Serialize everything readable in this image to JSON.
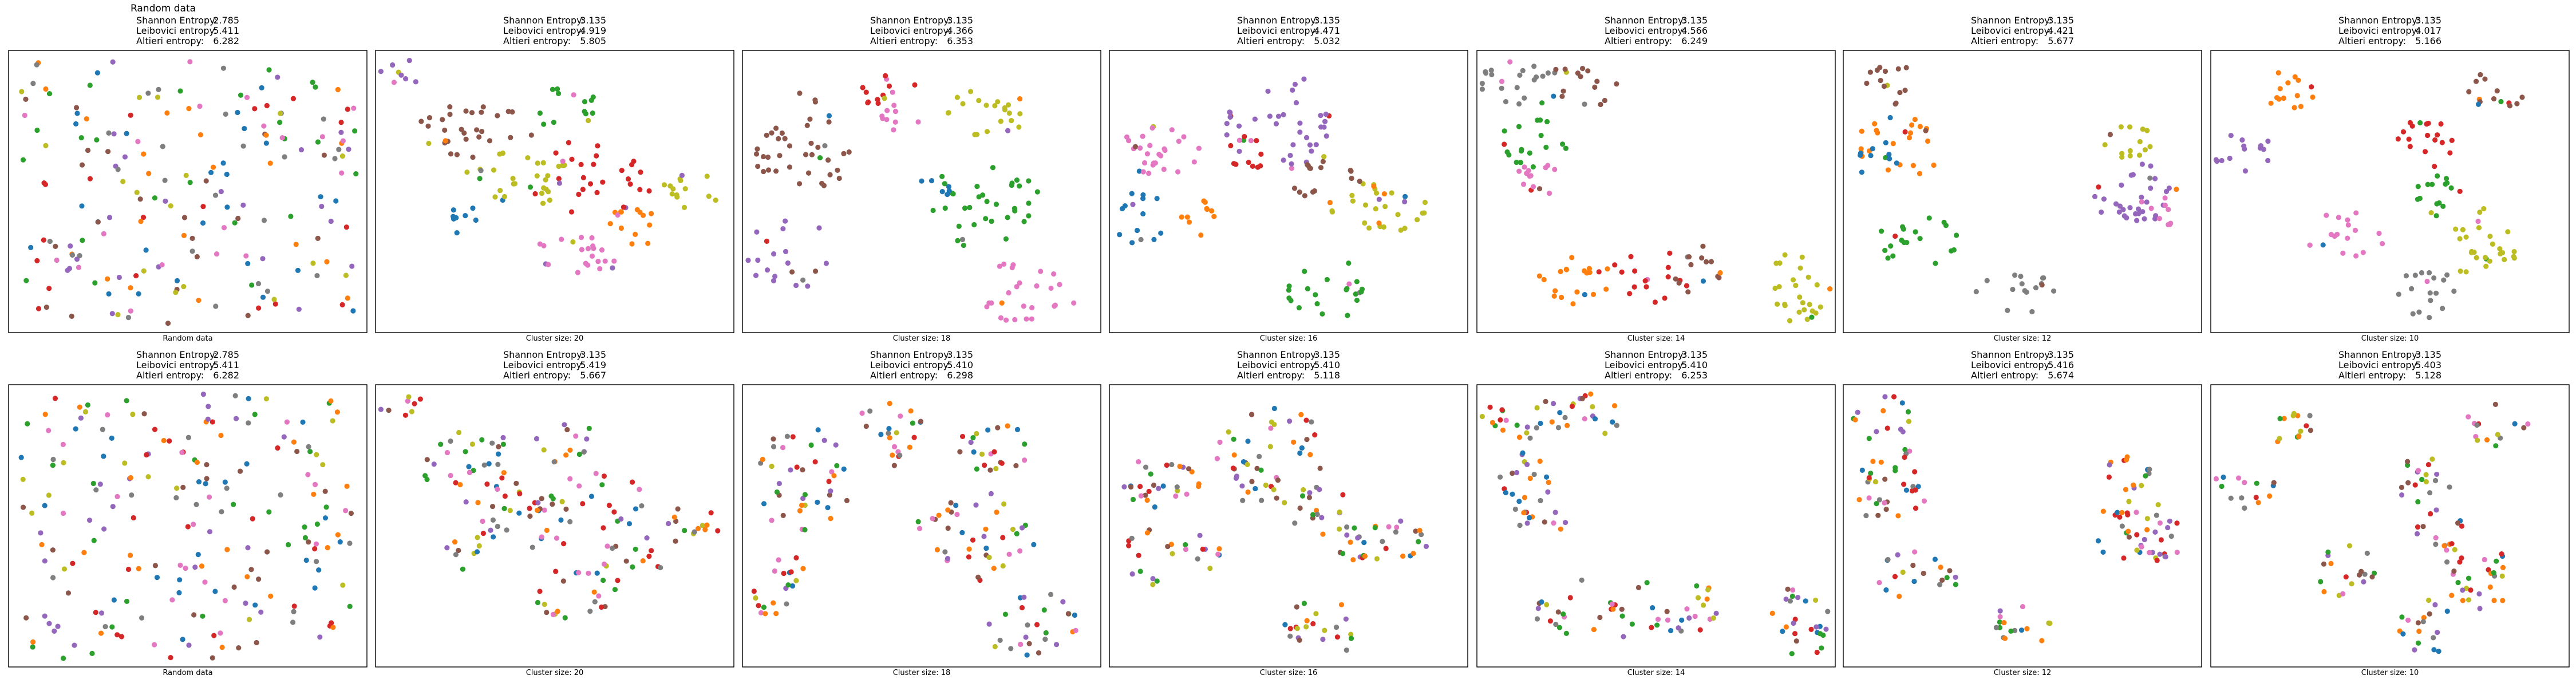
{
  "figure": {
    "labels": {
      "shannon": "Shannon Entropy:",
      "leibovici": "Leibovici entropy:",
      "altieri": "Altieri entropy:"
    },
    "palette": [
      "#1f77b4",
      "#ff7f0e",
      "#2ca02c",
      "#d62728",
      "#9467bd",
      "#8c564b",
      "#e377c2",
      "#7f7f7f",
      "#bcbd22"
    ]
  },
  "chart_data": [
    {
      "type": "scatter",
      "row": 1,
      "col": 1,
      "title": "Random data",
      "shannon": "2.785",
      "leibovici": "5.411",
      "altieri": "6.282",
      "xlabel": "Random data",
      "layout": "random",
      "coloring": "random",
      "seed": 11,
      "grid": false,
      "axis_ticks": false
    },
    {
      "type": "scatter",
      "row": 1,
      "col": 2,
      "shannon": "3.135",
      "leibovici": "4.919",
      "altieri": "5.805",
      "xlabel": "Cluster size: 20",
      "layout": "c20",
      "coloring": "grouped",
      "seed": 12
    },
    {
      "type": "scatter",
      "row": 1,
      "col": 3,
      "shannon": "3.135",
      "leibovici": "4.366",
      "altieri": "6.353",
      "xlabel": "Cluster size: 18",
      "layout": "c18",
      "coloring": "grouped",
      "seed": 13
    },
    {
      "type": "scatter",
      "row": 1,
      "col": 4,
      "shannon": "3.135",
      "leibovici": "4.471",
      "altieri": "5.032",
      "xlabel": "Cluster size: 16",
      "layout": "c16",
      "coloring": "grouped",
      "seed": 14
    },
    {
      "type": "scatter",
      "row": 1,
      "col": 5,
      "shannon": "3.135",
      "leibovici": "4.566",
      "altieri": "6.249",
      "xlabel": "Cluster size: 14",
      "layout": "c14",
      "coloring": "grouped",
      "seed": 15
    },
    {
      "type": "scatter",
      "row": 1,
      "col": 6,
      "shannon": "3.135",
      "leibovici": "4.421",
      "altieri": "5.677",
      "xlabel": "Cluster size: 12",
      "layout": "c12",
      "coloring": "grouped",
      "seed": 16
    },
    {
      "type": "scatter",
      "row": 1,
      "col": 7,
      "shannon": "3.135",
      "leibovici": "4.017",
      "altieri": "5.166",
      "xlabel": "Cluster size: 10",
      "layout": "c10",
      "coloring": "grouped",
      "seed": 17
    },
    {
      "type": "scatter",
      "row": 2,
      "col": 1,
      "shannon": "2.785",
      "leibovici": "5.411",
      "altieri": "6.282",
      "xlabel": "Random data",
      "layout": "random",
      "coloring": "random",
      "seed": 21
    },
    {
      "type": "scatter",
      "row": 2,
      "col": 2,
      "shannon": "3.135",
      "leibovici": "5.419",
      "altieri": "5.667",
      "xlabel": "Cluster size: 20",
      "layout": "c20",
      "coloring": "random",
      "seed": 22
    },
    {
      "type": "scatter",
      "row": 2,
      "col": 3,
      "shannon": "3.135",
      "leibovici": "5.410",
      "altieri": "6.298",
      "xlabel": "Cluster size: 18",
      "layout": "c18",
      "coloring": "random",
      "seed": 23
    },
    {
      "type": "scatter",
      "row": 2,
      "col": 4,
      "shannon": "3.135",
      "leibovici": "5.410",
      "altieri": "5.118",
      "xlabel": "Cluster size: 16",
      "layout": "c16",
      "coloring": "random",
      "seed": 24
    },
    {
      "type": "scatter",
      "row": 2,
      "col": 5,
      "shannon": "3.135",
      "leibovici": "5.410",
      "altieri": "6.253",
      "xlabel": "Cluster size: 14",
      "layout": "c14",
      "coloring": "random",
      "seed": 25
    },
    {
      "type": "scatter",
      "row": 2,
      "col": 6,
      "shannon": "3.135",
      "leibovici": "5.416",
      "altieri": "5.674",
      "xlabel": "Cluster size: 12",
      "layout": "c12",
      "coloring": "random",
      "seed": 26
    },
    {
      "type": "scatter",
      "row": 2,
      "col": 7,
      "shannon": "3.135",
      "leibovici": "5.403",
      "altieri": "5.128",
      "xlabel": "Cluster size: 10",
      "layout": "c10",
      "coloring": "random",
      "seed": 27
    }
  ]
}
